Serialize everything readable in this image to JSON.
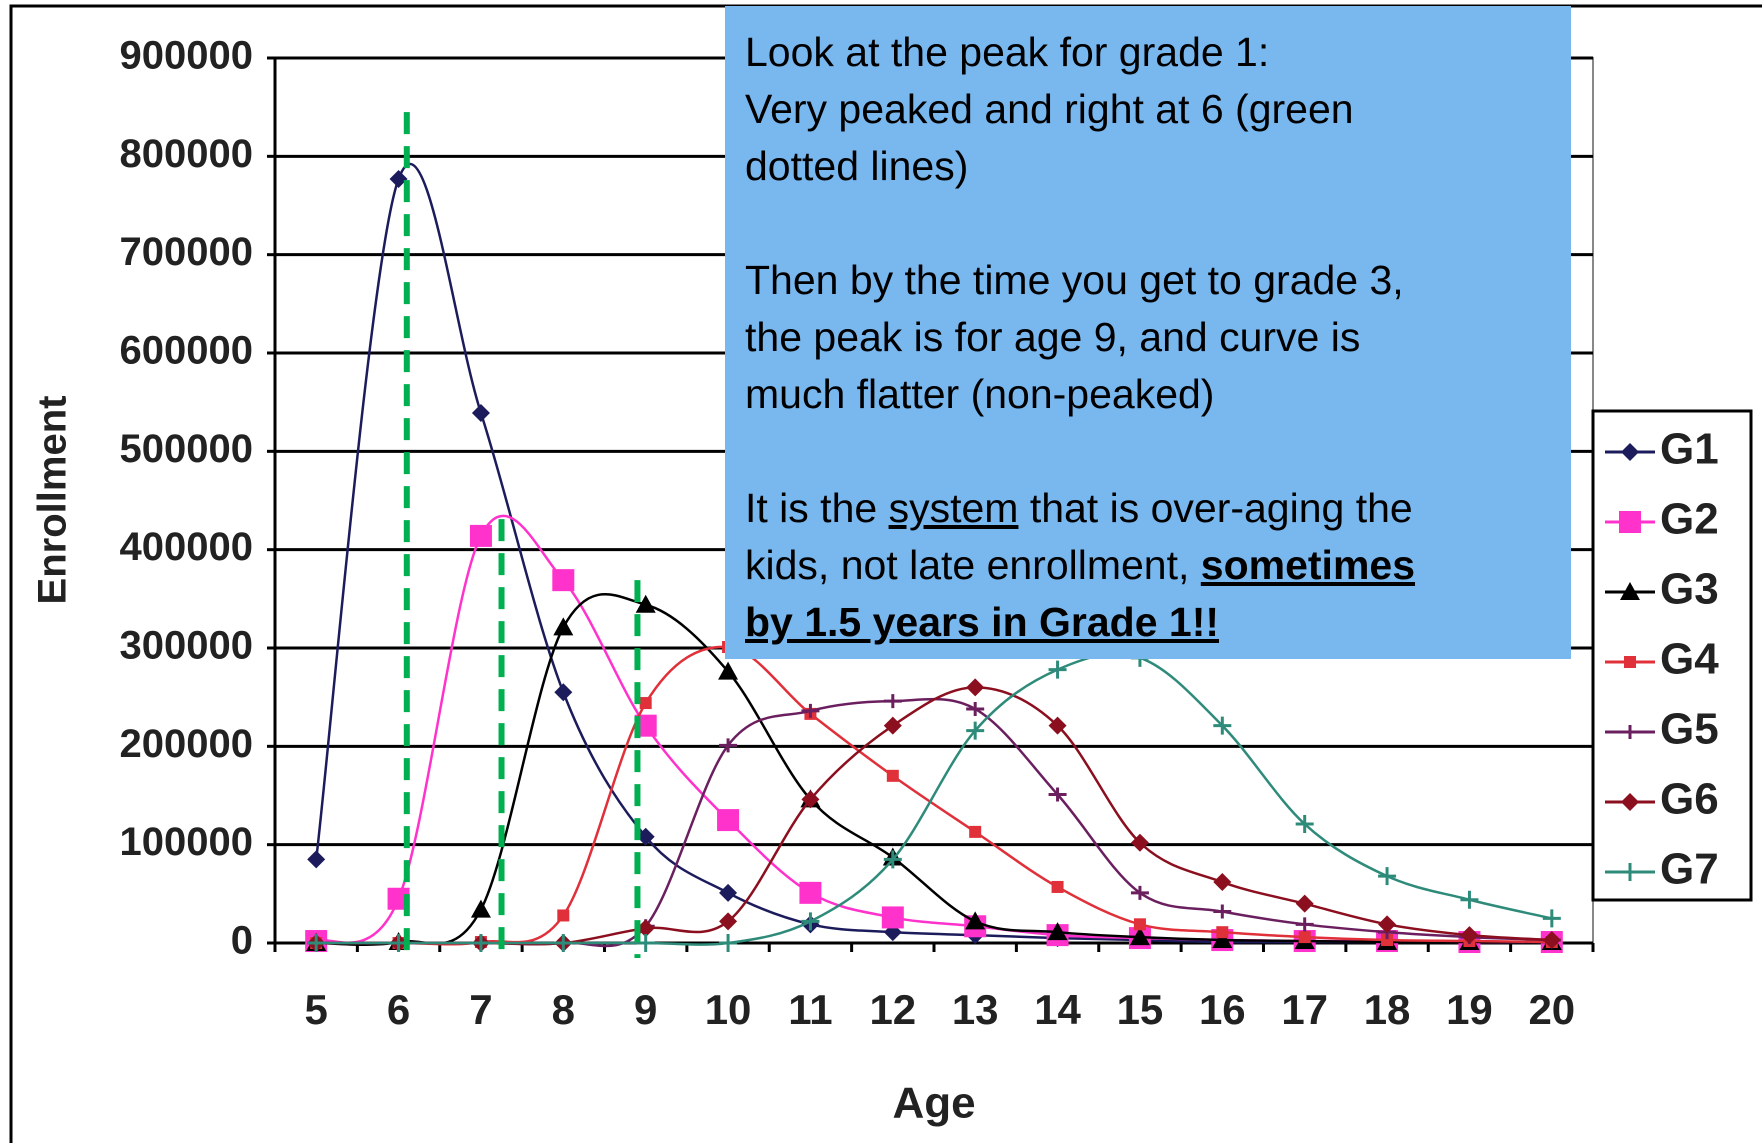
{
  "chart_data": {
    "type": "line",
    "y_label": "Enrollment",
    "x_label": "Age",
    "categories": [
      "5",
      "6",
      "7",
      "8",
      "9",
      "10",
      "11",
      "12",
      "13",
      "14",
      "15",
      "16",
      "17",
      "18",
      "19",
      "20"
    ],
    "ylim": [
      0,
      900000
    ],
    "yticks": [
      0,
      100000,
      200000,
      300000,
      400000,
      500000,
      600000,
      700000,
      800000,
      900000
    ],
    "grid": true,
    "smooth": true,
    "legend": "right",
    "series": [
      {
        "name": "G1",
        "color": "#1c1c5c",
        "marker": "diamond",
        "values": [
          85000,
          777000,
          539000,
          255000,
          108000,
          51000,
          19000,
          11000,
          8000,
          5000,
          3000,
          1000,
          1000,
          1000,
          1000,
          1000
        ]
      },
      {
        "name": "G2",
        "color": "#ff33cc",
        "marker": "square",
        "values": [
          2000,
          45000,
          414000,
          369000,
          221000,
          125000,
          51000,
          26000,
          17000,
          8000,
          5000,
          3000,
          2000,
          2000,
          1000,
          1000
        ]
      },
      {
        "name": "G3",
        "color": "#000000",
        "marker": "triangle",
        "values": [
          0,
          1000,
          34000,
          321000,
          344000,
          276000,
          146000,
          87000,
          22000,
          11000,
          6000,
          3000,
          2000,
          1000,
          1000,
          1000
        ]
      },
      {
        "name": "G4",
        "color": "#e0303a",
        "marker": "small-square",
        "values": [
          0,
          0,
          1000,
          28000,
          244000,
          301000,
          233000,
          170000,
          113000,
          57000,
          19000,
          11000,
          6000,
          3000,
          2000,
          1000
        ]
      },
      {
        "name": "G5",
        "color": "#6b1f5f",
        "marker": "dash",
        "values": [
          0,
          0,
          0,
          0,
          17000,
          201000,
          236000,
          246000,
          238000,
          151000,
          51000,
          32000,
          19000,
          11000,
          6000,
          3000
        ]
      },
      {
        "name": "G6",
        "color": "#8b0f1e",
        "marker": "diamond",
        "values": [
          0,
          0,
          0,
          0,
          15000,
          22000,
          146000,
          221000,
          260000,
          221000,
          102000,
          62000,
          40000,
          19000,
          8000,
          3000
        ]
      },
      {
        "name": "G7",
        "color": "#2e8b7a",
        "marker": "plus",
        "values": [
          0,
          0,
          0,
          0,
          0,
          0,
          22000,
          85000,
          216000,
          278000,
          290000,
          221000,
          121000,
          68000,
          44000,
          25000
        ]
      }
    ],
    "reference_lines": {
      "color": "#00b050",
      "style": "dashed",
      "x": [
        6.1,
        7.25,
        8.9
      ],
      "top": [
        845000,
        431000,
        369000
      ]
    }
  },
  "annotation": {
    "lines": [
      [
        "Look at the peak for grade 1:"
      ],
      [
        "Very peaked and right at 6 (green"
      ],
      [
        "dotted lines)"
      ],
      [
        ""
      ],
      [
        "Then by the time you get to grade 3,"
      ],
      [
        "the peak is for age 9, and curve is"
      ],
      [
        "much flatter (non-peaked)"
      ],
      [
        ""
      ],
      [
        "It is the ",
        "system",
        " that is over-aging the"
      ],
      [
        "kids, not late enrollment, ",
        "sometimes"
      ],
      [
        "by 1.5 years in Grade 1!!"
      ]
    ],
    "underlined": [
      "8.1",
      "9.1",
      "10.0"
    ],
    "bold": [
      "9.1",
      "10.0"
    ],
    "background": "#79b7ef"
  }
}
